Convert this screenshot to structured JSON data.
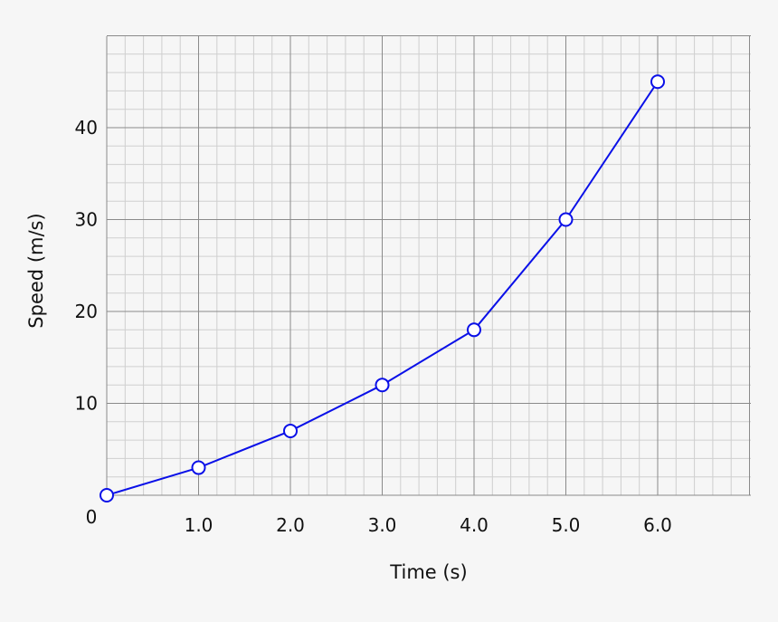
{
  "chart_data": {
    "type": "line",
    "title": "",
    "xlabel": "Time (s)",
    "ylabel": "Speed (m/s)",
    "xlim": [
      0,
      7
    ],
    "ylim": [
      0,
      50
    ],
    "x_ticks": [
      "1.0",
      "2.0",
      "3.0",
      "4.0",
      "5.0",
      "6.0"
    ],
    "y_ticks": [
      "10",
      "20",
      "30",
      "40"
    ],
    "origin_label": "0",
    "grid": "on",
    "series": [
      {
        "x": [
          0,
          1,
          2,
          3,
          4,
          5,
          6
        ],
        "values": [
          0,
          3,
          7,
          12,
          18,
          30,
          45
        ]
      }
    ],
    "colors": {
      "line": "#0a10e8",
      "marker_fill": "#ffffff",
      "major_grid": "#8a8a8a",
      "minor_grid": "#cfcfcf",
      "background": "#f6f6f6"
    }
  }
}
